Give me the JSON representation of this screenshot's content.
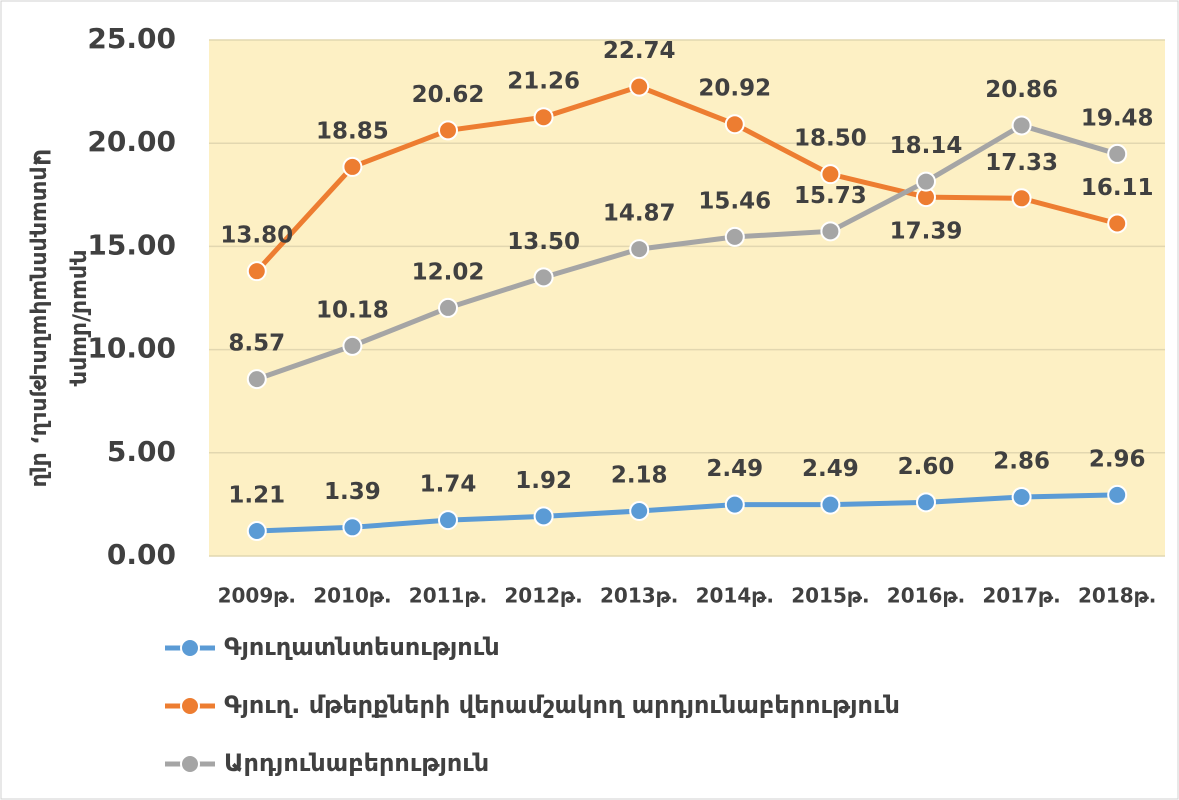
{
  "chart_data": {
    "type": "line",
    "y_label_lines": [
      "Արտադրողականություն, մլն",
      "դրամ/մարդ"
    ],
    "categories": [
      "2009թ.",
      "2010թ.",
      "2011թ.",
      "2012թ.",
      "2013թ.",
      "2014թ.",
      "2015թ.",
      "2016թ.",
      "2017թ.",
      "2018թ."
    ],
    "series": [
      {
        "name": "Գյուղատնտեսություն",
        "color": "#5b9bd5",
        "values": [
          1.21,
          1.39,
          1.74,
          1.92,
          2.18,
          2.49,
          2.49,
          2.6,
          2.86,
          2.96
        ],
        "value_labels": [
          "1.21",
          "1.39",
          "1.74",
          "1.92",
          "2.18",
          "2.49",
          "2.49",
          "2.60",
          "2.86",
          "2.96"
        ]
      },
      {
        "name": "Գյուղ. մթերքների վերամշակող արդյունաբերություն",
        "color": "#ed7d31",
        "values": [
          13.8,
          18.85,
          20.62,
          21.26,
          22.74,
          20.92,
          18.5,
          17.39,
          17.33,
          16.11
        ],
        "value_labels": [
          "13.80",
          "18.85",
          "20.62",
          "21.26",
          "22.74",
          "20.92",
          "18.50",
          "17.39",
          "17.33",
          "16.11"
        ]
      },
      {
        "name": "Արդյունաբերություն",
        "color": "#a5a5a5",
        "values": [
          8.57,
          10.18,
          12.02,
          13.5,
          14.87,
          15.46,
          15.73,
          18.14,
          20.86,
          19.48
        ],
        "value_labels": [
          "8.57",
          "10.18",
          "12.02",
          "13.50",
          "14.87",
          "15.46",
          "15.73",
          "18.14",
          "20.86",
          "19.48"
        ]
      }
    ],
    "ylim": [
      0,
      25
    ],
    "yticks": [
      {
        "value": 0,
        "label": "0.00"
      },
      {
        "value": 5,
        "label": "5.00"
      },
      {
        "value": 10,
        "label": "10.00"
      },
      {
        "value": 15,
        "label": "15.00"
      },
      {
        "value": 20,
        "label": "20.00"
      },
      {
        "value": 25,
        "label": "25.00"
      }
    ],
    "grid": true,
    "plot_background": "#fdf0c4"
  }
}
